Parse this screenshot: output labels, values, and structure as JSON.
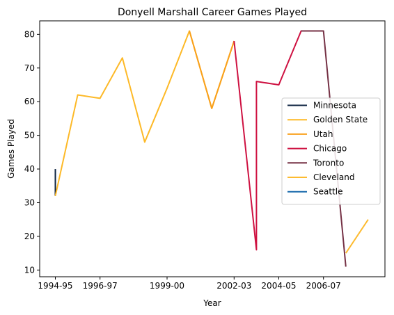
{
  "chart_data": {
    "type": "line",
    "title": "Donyell Marshall Career Games Played",
    "xlabel": "Year",
    "ylabel": "Games Played",
    "x_categories": [
      "1994-95",
      "1995-96",
      "1996-97",
      "1997-98",
      "1998-99",
      "1999-00",
      "2000-01",
      "2001-02",
      "2002-03",
      "2003-04",
      "2004-05",
      "2005-06",
      "2006-07",
      "2007-08",
      "2008-09"
    ],
    "x_tick_labels": [
      "1994-95",
      "1996-97",
      "1999-00",
      "2002-03",
      "2004-05",
      "2006-07"
    ],
    "ylim": [
      8,
      84
    ],
    "y_ticks": [
      10,
      20,
      30,
      40,
      50,
      60,
      70,
      80
    ],
    "grid": false,
    "legend_position": "center-right",
    "series": [
      {
        "name": "Minnesota",
        "color": "#0c2340",
        "points": [
          [
            "1994-95",
            40
          ],
          [
            "1994-95",
            32
          ]
        ]
      },
      {
        "name": "Golden State",
        "color": "#fdb927",
        "points": [
          [
            "1994-95",
            32
          ],
          [
            "1995-96",
            62
          ],
          [
            "1996-97",
            61
          ],
          [
            "1997-98",
            73
          ],
          [
            "1998-99",
            48
          ],
          [
            "1999-00",
            64
          ],
          [
            "2000-01",
            81
          ],
          [
            "2001-02",
            58
          ],
          [
            "2002-03",
            78
          ]
        ]
      },
      {
        "name": "Utah",
        "color": "#f9a01b",
        "points": [
          [
            "2000-01",
            81
          ],
          [
            "2001-02",
            58
          ],
          [
            "2002-03",
            78
          ]
        ]
      },
      {
        "name": "Chicago",
        "color": "#ce1141",
        "points": [
          [
            "2002-03",
            78
          ],
          [
            "2003-04",
            16
          ],
          [
            "2003-04",
            66
          ],
          [
            "2004-05",
            65
          ],
          [
            "2005-06",
            81
          ],
          [
            "2006-07",
            81
          ]
        ]
      },
      {
        "name": "Toronto",
        "color": "#753145",
        "points": [
          [
            "2005-06",
            81
          ],
          [
            "2006-07",
            81
          ],
          [
            "2007-08",
            11
          ]
        ]
      },
      {
        "name": "Cleveland",
        "color": "#fdbb30",
        "points": [
          [
            "2007-08",
            15
          ],
          [
            "2008-09",
            25
          ]
        ]
      },
      {
        "name": "Seattle",
        "color": "#1768ab",
        "points": []
      }
    ]
  }
}
